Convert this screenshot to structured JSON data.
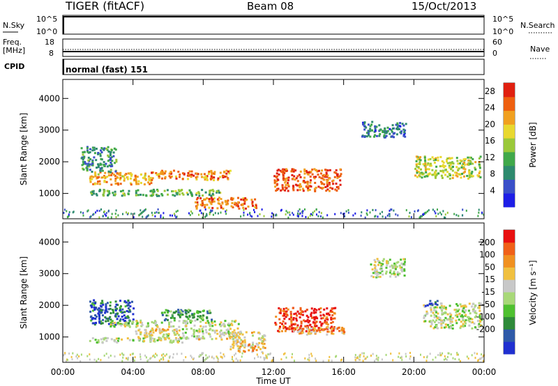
{
  "header": {
    "station": "TIGER (fitACF)",
    "beam": "Beam 08",
    "date": "15/Oct/2013"
  },
  "top_panels": {
    "nsky": {
      "label": "N.Sky",
      "right_label": "N.Search",
      "left_ticks": [
        "10^5",
        "10^0"
      ],
      "right_ticks": [
        "10^5",
        "10^0"
      ]
    },
    "freq": {
      "label_line1": "Freq.",
      "label_line2": "[MHz]",
      "right_label": "Nave",
      "left_ticks": [
        "18",
        "8"
      ],
      "right_ticks": [
        "60",
        "0"
      ]
    },
    "cpid": {
      "label": "CPID",
      "mode_text": "normal (fast) 151"
    }
  },
  "chart_data": [
    {
      "type": "heatmap",
      "title": "",
      "quantity": "Power",
      "xlabel": "",
      "ylabel": "Slant Range [km]",
      "x_ticks": [
        "00:00",
        "04:00",
        "08:00",
        "12:00",
        "16:00",
        "20:00",
        "00:00"
      ],
      "y_ticks": [
        "1000",
        "2000",
        "3000",
        "4000"
      ],
      "xlim_hours": [
        0,
        24
      ],
      "ylim_km": [
        200,
        4600
      ],
      "colorbar": {
        "label": "Power [dB]",
        "ticks": [
          "4",
          "8",
          "12",
          "16",
          "20",
          "24",
          "28"
        ],
        "range": [
          0,
          30
        ],
        "colors": [
          "#1e1ee6",
          "#3a50c8",
          "#2e8a6e",
          "#40a84a",
          "#9ac83a",
          "#e8d830",
          "#f0a020",
          "#ee6010",
          "#e02010"
        ]
      },
      "regions": [
        {
          "t0": 1.5,
          "t1": 5.0,
          "r0": 1300,
          "r1": 1700,
          "level": 0.72
        },
        {
          "t0": 5.0,
          "t1": 9.5,
          "r0": 1450,
          "r1": 1750,
          "level": 0.8
        },
        {
          "t0": 1.5,
          "t1": 9.0,
          "r0": 950,
          "r1": 1150,
          "level": 0.4
        },
        {
          "t0": 7.5,
          "t1": 11.0,
          "r0": 550,
          "r1": 900,
          "level": 0.82
        },
        {
          "t0": 12.0,
          "t1": 15.8,
          "r0": 1100,
          "r1": 1800,
          "level": 0.85
        },
        {
          "t0": 17.0,
          "t1": 19.5,
          "r0": 2800,
          "r1": 3300,
          "level": 0.25
        },
        {
          "t0": 20.0,
          "t1": 23.8,
          "r0": 1500,
          "r1": 2200,
          "level": 0.55
        },
        {
          "t0": 1.0,
          "t1": 3.0,
          "r0": 1700,
          "r1": 2500,
          "level": 0.3
        }
      ]
    },
    {
      "type": "heatmap",
      "title": "",
      "quantity": "Velocity",
      "xlabel": "Time UT",
      "ylabel": "Slant Range [km]",
      "x_ticks": [
        "00:00",
        "04:00",
        "08:00",
        "12:00",
        "16:00",
        "20:00",
        "00:00"
      ],
      "y_ticks": [
        "1000",
        "2000",
        "3000",
        "4000"
      ],
      "xlim_hours": [
        0,
        24
      ],
      "ylim_km": [
        200,
        4600
      ],
      "colorbar": {
        "label": "Velocity [m s⁻¹]",
        "ticks": [
          "200",
          "100",
          "50",
          "15",
          "-15",
          "-50",
          "-100",
          "-200"
        ],
        "range": [
          -250,
          250
        ],
        "colors": [
          "#2030d0",
          "#2f5aa8",
          "#2f8a3a",
          "#4fc030",
          "#a8d878",
          "#c8c8c8",
          "#f0c040",
          "#f09020",
          "#f06018",
          "#e81010"
        ]
      },
      "regions": [
        {
          "t0": 1.5,
          "t1": 4.0,
          "r0": 1400,
          "r1": 2200,
          "level": 0.15
        },
        {
          "t0": 2.5,
          "t1": 10.0,
          "r0": 1350,
          "r1": 1550,
          "level": 0.5
        },
        {
          "t0": 5.5,
          "t1": 8.5,
          "r0": 1550,
          "r1": 1900,
          "level": 0.3
        },
        {
          "t0": 4.0,
          "t1": 10.0,
          "r0": 950,
          "r1": 1300,
          "level": 0.55
        },
        {
          "t0": 1.5,
          "t1": 7.0,
          "r0": 850,
          "r1": 1000,
          "level": 0.5
        },
        {
          "t0": 9.5,
          "t1": 11.5,
          "r0": 550,
          "r1": 1200,
          "level": 0.65
        },
        {
          "t0": 12.0,
          "t1": 15.5,
          "r0": 1200,
          "r1": 1950,
          "level": 0.92
        },
        {
          "t0": 13.0,
          "t1": 16.0,
          "r0": 1100,
          "r1": 1350,
          "level": 0.68
        },
        {
          "t0": 17.5,
          "t1": 19.5,
          "r0": 2900,
          "r1": 3500,
          "level": 0.5
        },
        {
          "t0": 20.5,
          "t1": 23.8,
          "r0": 1300,
          "r1": 2100,
          "level": 0.5
        },
        {
          "t0": 20.6,
          "t1": 21.3,
          "r0": 2000,
          "r1": 2200,
          "level": 0.05
        }
      ]
    }
  ]
}
